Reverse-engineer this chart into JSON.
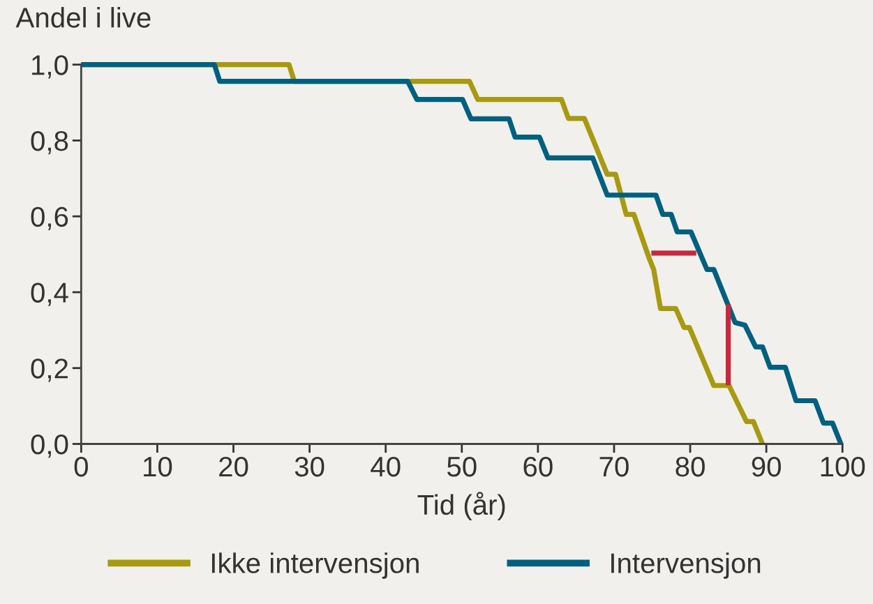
{
  "chart_data": {
    "type": "line",
    "xlabel": "Tid (år)",
    "ylabel": "Andel i live",
    "xlim": [
      0,
      100
    ],
    "xticks": [
      0,
      10,
      20,
      30,
      40,
      50,
      60,
      70,
      80,
      90,
      100
    ],
    "ylim": [
      0,
      1.0
    ],
    "yticks": [
      {
        "value": 0,
        "label": "0,0"
      },
      {
        "value": 0.2,
        "label": "0,2"
      },
      {
        "value": 0.4,
        "label": "0,4"
      },
      {
        "value": 0.6,
        "label": "0,6"
      },
      {
        "value": 0.8,
        "label": "0,8"
      },
      {
        "value": 1.0,
        "label": "1,0"
      }
    ],
    "grid": false,
    "legend": "bottom",
    "marker": "none",
    "line_style": "solid",
    "series": [
      {
        "name": "Ikke intervensjon",
        "color": "#a89a10",
        "x": [
          0,
          27.3,
          28,
          51,
          52.1,
          63.1,
          64,
          66.1,
          69.1,
          70.2,
          71.6,
          72.6,
          74.6,
          75.2,
          76.1,
          78.1,
          79.2,
          79.9,
          83.1,
          85.1,
          87.4,
          88.3,
          89.5
        ],
        "values": [
          1.0,
          1.0,
          0.956,
          0.956,
          0.908,
          0.908,
          0.858,
          0.858,
          0.711,
          0.711,
          0.605,
          0.605,
          0.49,
          0.46,
          0.357,
          0.357,
          0.307,
          0.307,
          0.154,
          0.154,
          0.059,
          0.059,
          0.0
        ]
      },
      {
        "name": "Intervensjon",
        "color": "#00607f",
        "x": [
          0,
          17.5,
          18.2,
          42.9,
          44.1,
          50.1,
          51.2,
          56.2,
          57.0,
          60.2,
          61.3,
          67.2,
          69.1,
          75.5,
          76.4,
          77.5,
          78.3,
          80.1,
          82.2,
          83.1,
          85.9,
          87.2,
          88.6,
          89.5,
          90.5,
          92.5,
          93.9,
          96.4,
          97.5,
          98.7,
          99.8
        ],
        "values": [
          1.0,
          1.0,
          0.956,
          0.956,
          0.908,
          0.908,
          0.857,
          0.857,
          0.809,
          0.809,
          0.754,
          0.754,
          0.656,
          0.656,
          0.605,
          0.605,
          0.559,
          0.559,
          0.46,
          0.46,
          0.32,
          0.313,
          0.256,
          0.256,
          0.202,
          0.202,
          0.114,
          0.114,
          0.055,
          0.055,
          0.0
        ]
      },
      {
        "color": "#c8283f",
        "x": [
          74.9,
          80.8
        ],
        "values": [
          0.503,
          0.503
        ]
      },
      {
        "color": "#c8283f",
        "x": [
          85.0,
          85.0
        ],
        "values": [
          0.155,
          0.368
        ]
      }
    ]
  }
}
